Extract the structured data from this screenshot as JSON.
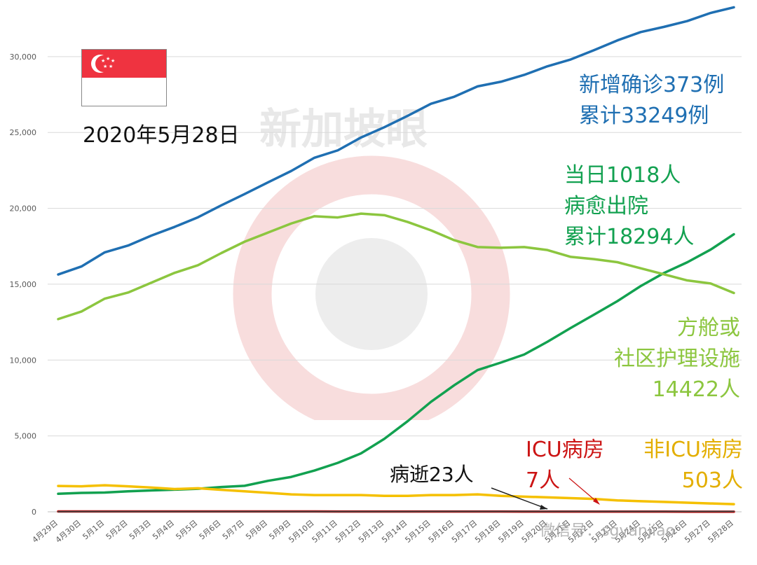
{
  "chart_data": {
    "type": "line",
    "ylim": [
      0,
      33500
    ],
    "yticks": [
      0,
      5000,
      10000,
      15000,
      20000,
      25000,
      30000
    ],
    "ytick_labels": [
      "0",
      "5,000",
      "10,000",
      "15,000",
      "20,000",
      "25,000",
      "30,000"
    ],
    "categories": [
      "4月29日",
      "4月30日",
      "5月1日",
      "5月2日",
      "5月3日",
      "5月4日",
      "5月5日",
      "5月6日",
      "5月7日",
      "5月8日",
      "5月9日",
      "5月10日",
      "5月11日",
      "5月12日",
      "5月13日",
      "5月14日",
      "5月15日",
      "5月16日",
      "5月17日",
      "5月18日",
      "5月19日",
      "5月20日",
      "5月21日",
      "5月22日",
      "5月23日",
      "5月24日",
      "5月25日",
      "5月26日",
      "5月27日",
      "5月28日"
    ],
    "series": [
      {
        "key": "cumulative",
        "color": "#1f6fb2",
        "values": [
          15641,
          16169,
          17101,
          17548,
          18205,
          18778,
          19410,
          20198,
          20939,
          21707,
          22460,
          23336,
          23822,
          24671,
          25346,
          26098,
          26891,
          27356,
          28038,
          28343,
          28794,
          29364,
          29812,
          30426,
          31068,
          31616,
          31960,
          32343,
          32876,
          33249
        ]
      },
      {
        "key": "discharged",
        "color": "#12a150",
        "values": [
          1188,
          1244,
          1268,
          1347,
          1408,
          1457,
          1519,
          1634,
          1712,
          2040,
          2296,
          2721,
          3225,
          3851,
          4809,
          5973,
          7248,
          8342,
          9340,
          9835,
          10365,
          11207,
          12117,
          12995,
          13882,
          14876,
          15738,
          16444,
          17276,
          18294
        ]
      },
      {
        "key": "community",
        "color": "#8cc63f",
        "values": [
          12700,
          13200,
          14050,
          14450,
          15100,
          15750,
          16250,
          17050,
          17800,
          18400,
          19000,
          19480,
          19400,
          19650,
          19550,
          19100,
          18550,
          17900,
          17450,
          17400,
          17450,
          17250,
          16800,
          16650,
          16450,
          16050,
          15650,
          15250,
          15050,
          14422
        ]
      },
      {
        "key": "non_icu",
        "color": "#f5c000",
        "values": [
          1700,
          1680,
          1750,
          1680,
          1600,
          1500,
          1550,
          1450,
          1350,
          1250,
          1150,
          1100,
          1100,
          1100,
          1050,
          1050,
          1100,
          1100,
          1150,
          1050,
          1000,
          950,
          900,
          850,
          750,
          700,
          650,
          600,
          550,
          503
        ]
      },
      {
        "key": "icu",
        "color": "#cc1414",
        "values": [
          25,
          25,
          24,
          24,
          24,
          24,
          24,
          23,
          23,
          23,
          21,
          21,
          20,
          20,
          19,
          19,
          18,
          17,
          16,
          15,
          14,
          13,
          12,
          11,
          10,
          10,
          9,
          8,
          8,
          7
        ]
      },
      {
        "key": "deaths",
        "color": "#404040",
        "values": [
          14,
          15,
          17,
          17,
          18,
          18,
          18,
          18,
          20,
          20,
          20,
          20,
          20,
          20,
          20,
          20,
          21,
          21,
          22,
          22,
          22,
          22,
          22,
          23,
          23,
          23,
          23,
          23,
          23,
          23
        ]
      }
    ]
  },
  "date_heading": "2020年5月28日",
  "annotations": {
    "new_cases_line": "新增确诊373例",
    "total_cases_line": "累计33249例",
    "discharged_today": "当日1018人",
    "discharged_label": "病愈出院",
    "discharged_total": "累计18294人",
    "community_line1": "方舱或",
    "community_line2": "社区护理设施",
    "community_count": "14422人",
    "icu_label": "ICU病房",
    "icu_count": "7人",
    "non_icu_label": "非ICU病房",
    "non_icu_count": "503人",
    "deaths": "病逝23人"
  },
  "watermark_text": "新加坡眼",
  "footer_watermark": "微信号：sgyanjiao",
  "colors": {
    "cumulative": "#1f6fb2",
    "discharged": "#12a150",
    "community": "#8cc63f",
    "non_icu": "#e3ae00",
    "icu": "#cc1414",
    "text": "#111111"
  },
  "flag_icon": "singapore-flag-icon"
}
